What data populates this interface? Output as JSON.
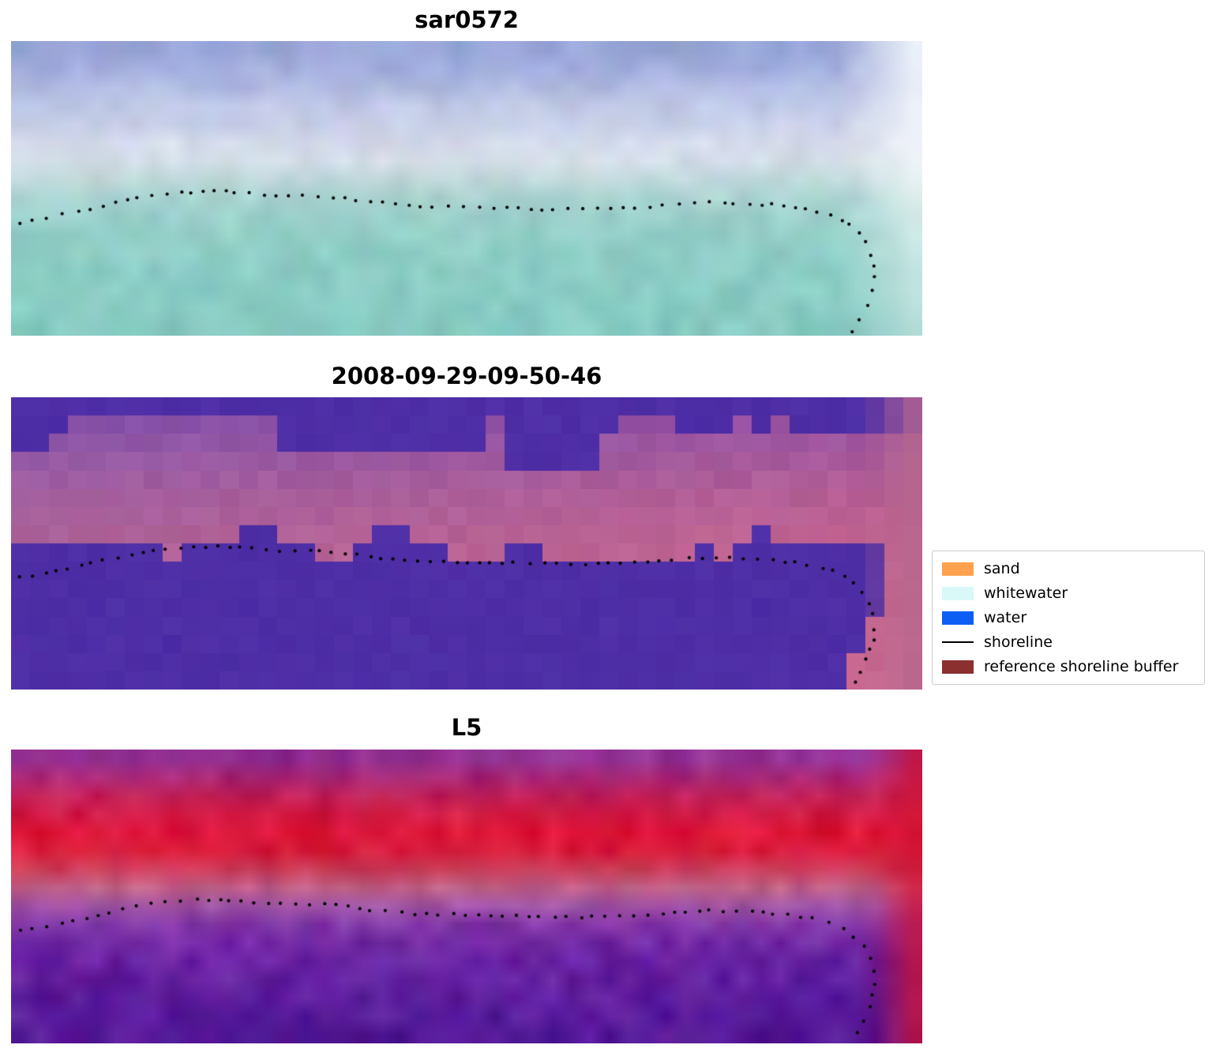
{
  "figure": {
    "panels": [
      {
        "id": "sar",
        "title": "sar0572",
        "kind": "bands",
        "seed": 7,
        "smooth": true,
        "noise": 10,
        "bands": [
          [
            0,
            "#96a4d6"
          ],
          [
            0.1,
            "#a3aedd"
          ],
          [
            0.2,
            "#bcc6e6"
          ],
          [
            0.3,
            "#ccd3ea"
          ],
          [
            0.38,
            "#dde1ee"
          ],
          [
            0.46,
            "#c4dadd"
          ],
          [
            0.55,
            "#a4d2cf"
          ],
          [
            0.66,
            "#93cfc8"
          ],
          [
            0.82,
            "#8bcdc5"
          ],
          [
            1,
            "#86cac2"
          ]
        ],
        "edge": {
          "start": 0.905,
          "color": "#f7fbfd",
          "strength": 1.0,
          "topBias": 0.55
        }
      },
      {
        "id": "class",
        "title": "2008-09-29-09-50-46",
        "kind": "class",
        "seed": 13,
        "smooth": false,
        "noise": 5,
        "water_color": "#4e2ea6",
        "buffer_bands": [
          [
            0,
            "#7b4aae"
          ],
          [
            0.18,
            "#8f58a6"
          ],
          [
            0.32,
            "#a05e9f"
          ],
          [
            0.5,
            "#ad6399"
          ],
          [
            0.75,
            "#b3659a"
          ],
          [
            1,
            "#b5689b"
          ]
        ],
        "edge": {
          "start": 0.935,
          "color": "#b7688e",
          "strength": 0.95,
          "topBias": 0
        }
      },
      {
        "id": "l5",
        "title": "L5",
        "kind": "bands",
        "seed": 21,
        "smooth": true,
        "noise": 15,
        "bands": [
          [
            0,
            "#8a35a0"
          ],
          [
            0.07,
            "#a02c85"
          ],
          [
            0.13,
            "#ba2464"
          ],
          [
            0.2,
            "#cf1c48"
          ],
          [
            0.28,
            "#dd1438"
          ],
          [
            0.36,
            "#d8203f"
          ],
          [
            0.43,
            "#c44a67"
          ],
          [
            0.49,
            "#bd6d9c"
          ],
          [
            0.54,
            "#9a4fa8"
          ],
          [
            0.61,
            "#7b2fa8"
          ],
          [
            0.72,
            "#6822a2"
          ],
          [
            0.86,
            "#5a1b9c"
          ],
          [
            1,
            "#521896"
          ]
        ],
        "edge": {
          "start": 0.94,
          "color": "#d01334",
          "strength": 0.9,
          "topBias": 0
        }
      }
    ],
    "legend": {
      "items": [
        {
          "label": "sand",
          "type": "patch",
          "color": "#ffa14e"
        },
        {
          "label": "whitewater",
          "type": "patch",
          "color": "#d8f9f7"
        },
        {
          "label": "water",
          "type": "patch",
          "color": "#0d5ef5"
        },
        {
          "label": "shoreline",
          "type": "line",
          "color": "#000000"
        },
        {
          "label": "reference shoreline buffer",
          "type": "patch",
          "color": "#8b2f2f"
        }
      ]
    }
  },
  "chart_data": {
    "type": "heatmap",
    "title": "",
    "panels": [
      {
        "title": "sar0572",
        "description": "SAR backscatter image: blue-lavender upper (land) region, pale bright band, teal lower (sea) region, white no-data strip on right edge, dotted black detected shoreline"
      },
      {
        "title": "2008-09-29-09-50-46",
        "description": "classification map: flat indigo water-class regions top and bottom, mauve reference-shoreline-buffer band across middle, pink strip on right edge, dotted black shoreline"
      },
      {
        "title": "L5",
        "description": "Landsat 5 false-color composite: purple/red upper band, bright red land band, purple water below shoreline, red strip on right edge, dotted black shoreline"
      }
    ],
    "legend_entries": [
      "sand",
      "whitewater",
      "water",
      "shoreline",
      "reference shoreline buffer"
    ],
    "shoreline_path_normalized": [
      [
        0.007,
        0.62
      ],
      [
        0.03,
        0.605
      ],
      [
        0.055,
        0.59
      ],
      [
        0.08,
        0.575
      ],
      [
        0.105,
        0.555
      ],
      [
        0.135,
        0.535
      ],
      [
        0.165,
        0.52
      ],
      [
        0.2,
        0.512
      ],
      [
        0.235,
        0.51
      ],
      [
        0.265,
        0.518
      ],
      [
        0.3,
        0.528
      ],
      [
        0.335,
        0.525
      ],
      [
        0.365,
        0.533
      ],
      [
        0.4,
        0.548
      ],
      [
        0.44,
        0.558
      ],
      [
        0.48,
        0.562
      ],
      [
        0.53,
        0.565
      ],
      [
        0.58,
        0.57
      ],
      [
        0.625,
        0.572
      ],
      [
        0.665,
        0.568
      ],
      [
        0.7,
        0.562
      ],
      [
        0.73,
        0.553
      ],
      [
        0.765,
        0.548
      ],
      [
        0.8,
        0.55
      ],
      [
        0.835,
        0.556
      ],
      [
        0.862,
        0.565
      ],
      [
        0.885,
        0.578
      ],
      [
        0.905,
        0.598
      ],
      [
        0.921,
        0.625
      ],
      [
        0.933,
        0.66
      ],
      [
        0.941,
        0.7
      ],
      [
        0.9465,
        0.748
      ],
      [
        0.948,
        0.8
      ],
      [
        0.944,
        0.858
      ],
      [
        0.937,
        0.912
      ],
      [
        0.928,
        0.962
      ],
      [
        0.922,
        0.995
      ]
    ]
  }
}
